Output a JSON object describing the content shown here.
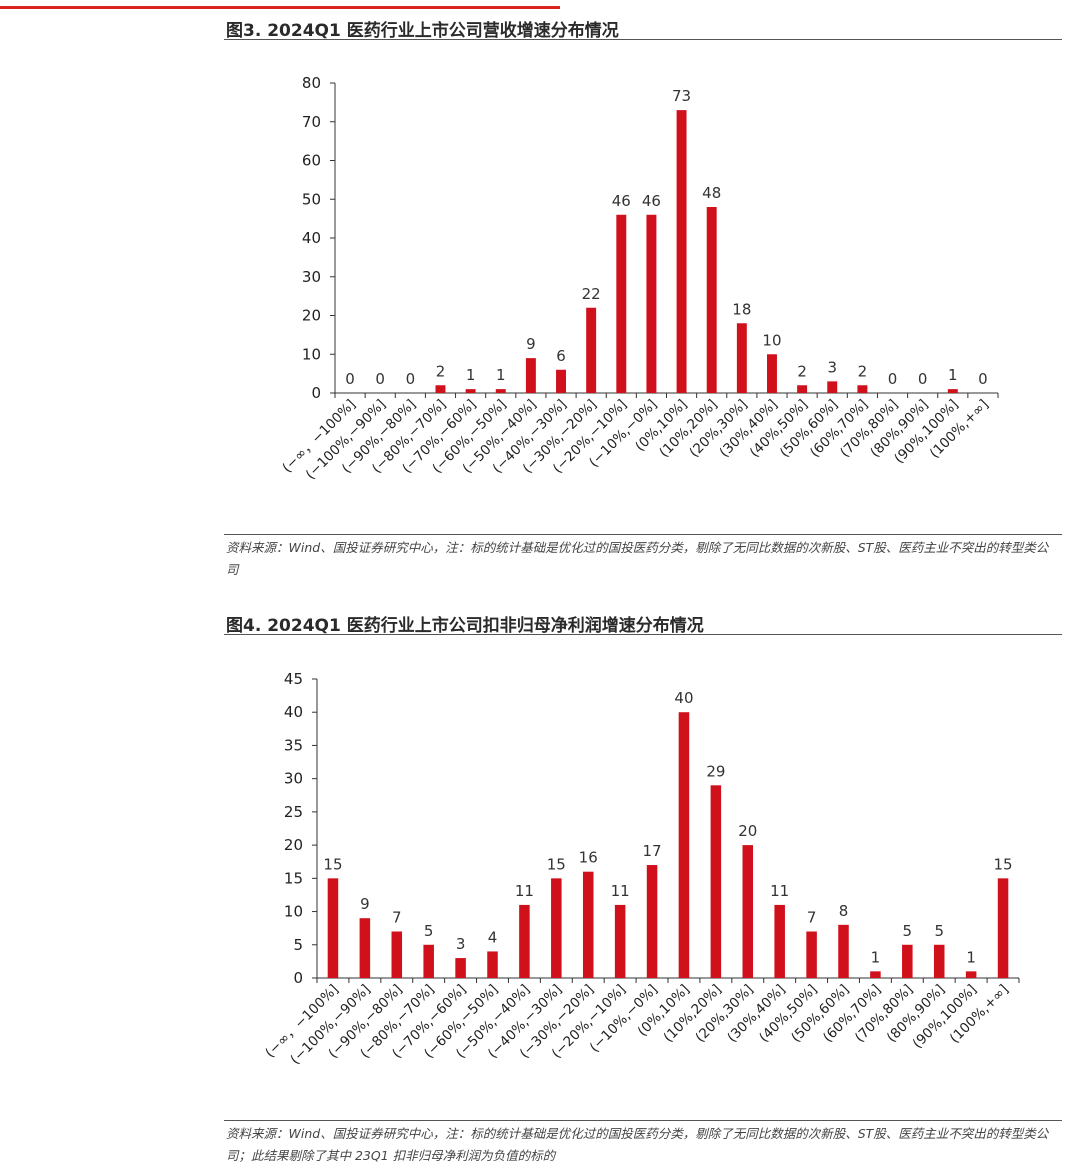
{
  "page": {
    "fig3_title": "图3. 2024Q1 医药行业上市公司营收增速分布情况",
    "fig3_source": "资料来源：Wind、国投证券研究中心，注：标的统计基础是优化过的国投医药分类，剔除了无同比数据的次新股、ST股、医药主业不突出的转型类公司",
    "fig4_title": "图4. 2024Q1 医药行业上市公司扣非归母净利润增速分布情况",
    "fig4_source": "资料来源：Wind、国投证券研究中心，注：标的统计基础是优化过的国投医药分类，剔除了无同比数据的次新股、ST股、医药主业不突出的转型类公司；此结果剔除了其中 23Q1 扣非归母净利润为负值的标的",
    "accent_color": "#d9251c",
    "bar_color": "#d0111c"
  },
  "chart_data": [
    {
      "type": "bar",
      "title": "图3. 2024Q1 医药行业上市公司营收增速分布情况",
      "categories": [
        "(−∞，−100%]",
        "(−100%,−90%]",
        "(−90%,−80%]",
        "(−80%,−70%]",
        "(−70%,−60%]",
        "(−60%,−50%]",
        "(−50%,−40%]",
        "(−40%,−30%]",
        "(−30%,−20%]",
        "(−20%,−10%]",
        "(−10%,−0%]",
        "(0%,10%]",
        "(10%,20%]",
        "(20%,30%]",
        "(30%,40%]",
        "(40%,50%]",
        "(50%,60%]",
        "(60%,70%]",
        "(70%,80%]",
        "(80%,90%]",
        "(90%,100%]",
        "(100%,+∞]"
      ],
      "values": [
        0,
        0,
        0,
        2,
        1,
        1,
        9,
        6,
        22,
        46,
        46,
        73,
        48,
        18,
        10,
        2,
        3,
        2,
        0,
        0,
        1,
        0
      ],
      "ylim": [
        0,
        80
      ],
      "yticks": [
        0,
        10,
        20,
        30,
        40,
        50,
        60,
        70,
        80
      ],
      "data_labels": true,
      "grid": false,
      "legend": "none"
    },
    {
      "type": "bar",
      "title": "图4. 2024Q1 医药行业上市公司扣非归母净利润增速分布情况",
      "categories": [
        "(−∞，−100%]",
        "(−100%,−90%]",
        "(−90%,−80%]",
        "(−80%,−70%]",
        "(−70%,−60%]",
        "(−60%,−50%]",
        "(−50%,−40%]",
        "(−40%,−30%]",
        "(−30%,−20%]",
        "(−20%,−10%]",
        "(−10%,−0%]",
        "(0%,10%]",
        "(10%,20%]",
        "(20%,30%]",
        "(30%,40%]",
        "(40%,50%]",
        "(50%,60%]",
        "(60%,70%]",
        "(70%,80%]",
        "(80%,90%]",
        "(90%,100%]",
        "(100%,+∞]"
      ],
      "values": [
        15,
        9,
        7,
        5,
        3,
        4,
        11,
        15,
        16,
        11,
        17,
        40,
        29,
        20,
        11,
        7,
        8,
        1,
        5,
        5,
        1,
        15
      ],
      "ylim": [
        0,
        45
      ],
      "yticks": [
        0,
        5,
        10,
        15,
        20,
        25,
        30,
        35,
        40,
        45
      ],
      "data_labels": true,
      "grid": false,
      "legend": "none"
    }
  ]
}
